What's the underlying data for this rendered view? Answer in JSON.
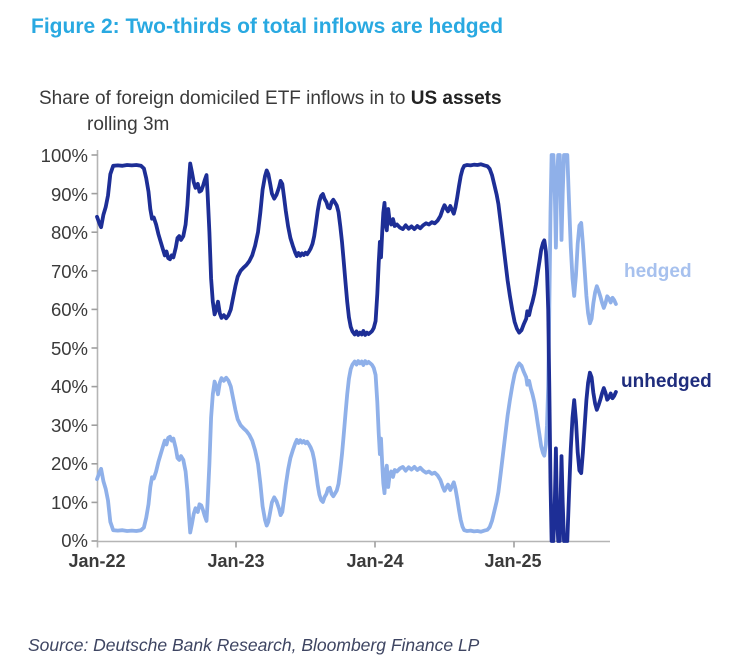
{
  "header": {
    "title": "Figure 2: Two-thirds of total inflows are hedged"
  },
  "chart": {
    "subtitle_main": "Share of foreign domiciled ETF inflows in to ",
    "subtitle_bold": "US assets",
    "subtitle_line2": "rolling 3m"
  },
  "source_note": "Source: Deutsche Bank Research, Bloomberg Finance LP",
  "colors": {
    "title": "#29a9e1",
    "unhedged_line": "#1d2e96",
    "hedged_line": "#8fb0e9",
    "unhedged_label": "#1f2d7d",
    "hedged_label": "#a7c1ee",
    "axis_line": "#b5b5b5",
    "tick_mark": "#9f9f9f",
    "tick_text": "#3a3a3a"
  },
  "chart_data": {
    "type": "line",
    "title": "Share of foreign domiciled ETF inflows in to US assets, rolling 3m",
    "grid": "off",
    "legend_position": "end-of-line labels at right",
    "x_axis": {
      "tick_labels": [
        "Jan-22",
        "Jan-23",
        "Jan-24",
        "Jan-25"
      ],
      "tick_months": [
        0,
        12,
        24,
        36
      ],
      "unit": "months since Jan-2022",
      "range_months": [
        0,
        44.9
      ]
    },
    "y_axis": {
      "tick_labels": [
        "100%",
        "90%",
        "80%",
        "70%",
        "60%",
        "50%",
        "40%",
        "30%",
        "20%",
        "10%",
        "0%"
      ],
      "min": 0,
      "max": 100,
      "tick_step": 10,
      "unit": "percent"
    },
    "clip_note": "Series are complementary shares summing to 100%; values outside 0-100% (spring 2025 spikes) are clipped to the axis range in the plot.",
    "end_labels": [
      {
        "text": "hedged",
        "series": "hedged",
        "approx_end_value_pct": 61.4
      },
      {
        "text": "unhedged",
        "series": "unhedged",
        "approx_end_value_pct": 38.6
      }
    ],
    "series": [
      {
        "name": "unhedged",
        "color": "#1d2e96",
        "points": [
          [
            0,
            84
          ],
          [
            0.2,
            82.3
          ],
          [
            0.35,
            81.3
          ],
          [
            0.55,
            84.5
          ],
          [
            0.75,
            86.5
          ],
          [
            0.95,
            89.5
          ],
          [
            1.15,
            95
          ],
          [
            1.4,
            97.2
          ],
          [
            1.8,
            97.3
          ],
          [
            2.2,
            97.2
          ],
          [
            2.6,
            97.4
          ],
          [
            3,
            97.3
          ],
          [
            3.4,
            97.4
          ],
          [
            3.8,
            97.2
          ],
          [
            4.05,
            96.5
          ],
          [
            4.25,
            94
          ],
          [
            4.45,
            90.5
          ],
          [
            4.6,
            86
          ],
          [
            4.75,
            83.5
          ],
          [
            4.9,
            83.8
          ],
          [
            5.1,
            82
          ],
          [
            5.3,
            79.5
          ],
          [
            5.5,
            77.5
          ],
          [
            5.7,
            75.5
          ],
          [
            5.85,
            74
          ],
          [
            6,
            75
          ],
          [
            6.15,
            73.3
          ],
          [
            6.3,
            73
          ],
          [
            6.45,
            74
          ],
          [
            6.6,
            73.5
          ],
          [
            6.8,
            76
          ],
          [
            6.95,
            78.5
          ],
          [
            7.1,
            79
          ],
          [
            7.25,
            78
          ],
          [
            7.45,
            79
          ],
          [
            7.65,
            82
          ],
          [
            7.8,
            87
          ],
          [
            7.95,
            94
          ],
          [
            8.05,
            97.8
          ],
          [
            8.2,
            95.5
          ],
          [
            8.35,
            93
          ],
          [
            8.5,
            91.5
          ],
          [
            8.7,
            92.5
          ],
          [
            8.85,
            90.5
          ],
          [
            9,
            90.8
          ],
          [
            9.15,
            92
          ],
          [
            9.3,
            93.5
          ],
          [
            9.45,
            94.8
          ],
          [
            9.55,
            90
          ],
          [
            9.7,
            80
          ],
          [
            9.85,
            68
          ],
          [
            10,
            62
          ],
          [
            10.15,
            58.7
          ],
          [
            10.3,
            60
          ],
          [
            10.45,
            62
          ],
          [
            10.6,
            59
          ],
          [
            10.75,
            57.8
          ],
          [
            10.95,
            58.5
          ],
          [
            11.15,
            57.7
          ],
          [
            11.35,
            58.5
          ],
          [
            11.55,
            60
          ],
          [
            11.75,
            63
          ],
          [
            11.95,
            66
          ],
          [
            12.15,
            68.5
          ],
          [
            12.4,
            70
          ],
          [
            12.65,
            70.8
          ],
          [
            12.9,
            71.5
          ],
          [
            13.15,
            72.5
          ],
          [
            13.4,
            74
          ],
          [
            13.65,
            76.5
          ],
          [
            13.9,
            80
          ],
          [
            14.1,
            85
          ],
          [
            14.3,
            91
          ],
          [
            14.5,
            94.5
          ],
          [
            14.65,
            96
          ],
          [
            14.8,
            95
          ],
          [
            14.95,
            92.5
          ],
          [
            15.1,
            90
          ],
          [
            15.3,
            88.7
          ],
          [
            15.5,
            89.7
          ],
          [
            15.7,
            91.5
          ],
          [
            15.85,
            93.3
          ],
          [
            16,
            92.5
          ],
          [
            16.15,
            89
          ],
          [
            16.3,
            85.5
          ],
          [
            16.5,
            81.5
          ],
          [
            16.7,
            78.5
          ],
          [
            16.9,
            76.5
          ],
          [
            17.1,
            74.8
          ],
          [
            17.25,
            73.8
          ],
          [
            17.4,
            74.6
          ],
          [
            17.55,
            73.9
          ],
          [
            17.7,
            74.5
          ],
          [
            17.85,
            74.1
          ],
          [
            18,
            74.7
          ],
          [
            18.15,
            74.3
          ],
          [
            18.3,
            75
          ],
          [
            18.45,
            75.8
          ],
          [
            18.6,
            77
          ],
          [
            18.75,
            79
          ],
          [
            18.9,
            82
          ],
          [
            19.05,
            85.5
          ],
          [
            19.2,
            88
          ],
          [
            19.35,
            89.4
          ],
          [
            19.5,
            89.9
          ],
          [
            19.65,
            88.6
          ],
          [
            19.8,
            87.8
          ],
          [
            19.95,
            86.4
          ],
          [
            20.1,
            86.2
          ],
          [
            20.25,
            87.8
          ],
          [
            20.4,
            88.4
          ],
          [
            20.55,
            87.7
          ],
          [
            20.7,
            86.9
          ],
          [
            20.85,
            85.2
          ],
          [
            21,
            81.5
          ],
          [
            21.15,
            77.5
          ],
          [
            21.3,
            72.5
          ],
          [
            21.45,
            67
          ],
          [
            21.6,
            62
          ],
          [
            21.75,
            58
          ],
          [
            21.9,
            55.5
          ],
          [
            22.05,
            54.3
          ],
          [
            22.25,
            53.5
          ],
          [
            22.4,
            54.3
          ],
          [
            22.55,
            53.4
          ],
          [
            22.7,
            54
          ],
          [
            22.85,
            53.5
          ],
          [
            23,
            54.4
          ],
          [
            23.15,
            53.4
          ],
          [
            23.3,
            54
          ],
          [
            23.45,
            53.6
          ],
          [
            23.6,
            54
          ],
          [
            23.75,
            54.4
          ],
          [
            23.9,
            55.2
          ],
          [
            24.05,
            57
          ],
          [
            24.2,
            64
          ],
          [
            24.32,
            72
          ],
          [
            24.42,
            77.5
          ],
          [
            24.52,
            73.5
          ],
          [
            24.62,
            80
          ],
          [
            24.72,
            85
          ],
          [
            24.82,
            87.6
          ],
          [
            24.92,
            82
          ],
          [
            25.02,
            80.5
          ],
          [
            25.14,
            86
          ],
          [
            25.26,
            83
          ],
          [
            25.4,
            82
          ],
          [
            25.55,
            83.4
          ],
          [
            25.7,
            81.6
          ],
          [
            25.9,
            82
          ],
          [
            26.15,
            81.2
          ],
          [
            26.4,
            80.8
          ],
          [
            26.65,
            81.8
          ],
          [
            26.9,
            80.9
          ],
          [
            27.15,
            81.5
          ],
          [
            27.4,
            80.8
          ],
          [
            27.65,
            81.6
          ],
          [
            27.9,
            81
          ],
          [
            28.15,
            81.8
          ],
          [
            28.4,
            82.3
          ],
          [
            28.65,
            82
          ],
          [
            28.9,
            82.6
          ],
          [
            29.15,
            82.3
          ],
          [
            29.4,
            83
          ],
          [
            29.65,
            84.2
          ],
          [
            29.85,
            86
          ],
          [
            30,
            87
          ],
          [
            30.15,
            86.2
          ],
          [
            30.3,
            85.4
          ],
          [
            30.5,
            86.8
          ],
          [
            30.65,
            85.8
          ],
          [
            30.8,
            84.8
          ],
          [
            30.95,
            86.5
          ],
          [
            31.1,
            89
          ],
          [
            31.25,
            92
          ],
          [
            31.4,
            94.5
          ],
          [
            31.55,
            96.3
          ],
          [
            31.7,
            97.2
          ],
          [
            31.95,
            97.4
          ],
          [
            32.25,
            97.3
          ],
          [
            32.55,
            97.5
          ],
          [
            32.85,
            97.4
          ],
          [
            33.15,
            97.6
          ],
          [
            33.45,
            97.3
          ],
          [
            33.7,
            97.1
          ],
          [
            33.9,
            96.4
          ],
          [
            34.1,
            94.8
          ],
          [
            34.3,
            92.3
          ],
          [
            34.5,
            89.8
          ],
          [
            34.65,
            87.3
          ],
          [
            34.85,
            82.5
          ],
          [
            35.05,
            77.5
          ],
          [
            35.25,
            72.5
          ],
          [
            35.45,
            67.5
          ],
          [
            35.65,
            63.5
          ],
          [
            35.85,
            59.8
          ],
          [
            36.05,
            56.8
          ],
          [
            36.25,
            55
          ],
          [
            36.45,
            54
          ],
          [
            36.65,
            54.6
          ],
          [
            36.85,
            56.2
          ],
          [
            37.05,
            57.6
          ],
          [
            37.15,
            59.5
          ],
          [
            37.3,
            58.5
          ],
          [
            37.45,
            60.5
          ],
          [
            37.6,
            62
          ],
          [
            37.75,
            64
          ],
          [
            37.9,
            66.5
          ],
          [
            38.05,
            69.5
          ],
          [
            38.2,
            72.5
          ],
          [
            38.35,
            75.5
          ],
          [
            38.5,
            77.2
          ],
          [
            38.62,
            77.9
          ],
          [
            38.75,
            75
          ],
          [
            38.85,
            70
          ],
          [
            38.95,
            60
          ],
          [
            39.05,
            40
          ],
          [
            39.15,
            15
          ],
          [
            39.25,
            -6
          ],
          [
            39.4,
            -8
          ],
          [
            39.52,
            10
          ],
          [
            39.62,
            24
          ],
          [
            39.72,
            6
          ],
          [
            39.82,
            -6
          ],
          [
            39.95,
            -5
          ],
          [
            40.1,
            22
          ],
          [
            40.2,
            10
          ],
          [
            40.32,
            -5
          ],
          [
            40.47,
            -8
          ],
          [
            40.6,
            -2
          ],
          [
            40.75,
            12
          ],
          [
            40.9,
            24
          ],
          [
            41.05,
            32
          ],
          [
            41.2,
            36.5
          ],
          [
            41.35,
            31
          ],
          [
            41.5,
            23
          ],
          [
            41.65,
            18.3
          ],
          [
            41.8,
            17.6
          ],
          [
            41.95,
            23
          ],
          [
            42.1,
            30
          ],
          [
            42.25,
            36.5
          ],
          [
            42.4,
            41
          ],
          [
            42.55,
            43.6
          ],
          [
            42.7,
            42.4
          ],
          [
            42.85,
            38.5
          ],
          [
            43,
            35.6
          ],
          [
            43.15,
            34
          ],
          [
            43.3,
            35.2
          ],
          [
            43.45,
            36.6
          ],
          [
            43.6,
            38.2
          ],
          [
            43.75,
            39.6
          ],
          [
            43.9,
            38.4
          ],
          [
            44.05,
            36.6
          ],
          [
            44.2,
            37.2
          ],
          [
            44.35,
            38.2
          ],
          [
            44.5,
            37
          ],
          [
            44.65,
            37.6
          ],
          [
            44.8,
            38.6
          ]
        ]
      },
      {
        "name": "hedged",
        "color": "#8fb0e9",
        "derivation": "100_minus_unhedged",
        "points_note": "hedged share = 100% minus unhedged share at the same x values (e.g. starts ~16%, ~2.5% Feb-May 22, ~42% Dec-22, ~46.5% Dec-23, ~2.5% late-24, spikes >100% (clipped) Apr-May 25, ends ~61%)"
      }
    ]
  }
}
